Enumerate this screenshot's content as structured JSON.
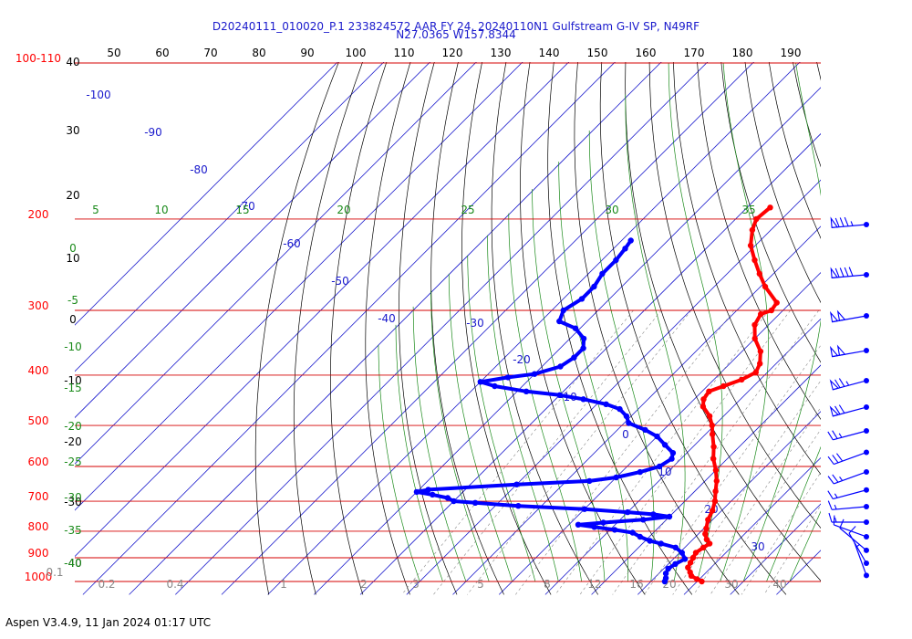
{
  "chart_data": {
    "type": "skew-t log-p sounding",
    "title_line1": "D20240111_010020_P.1 233824572 AAR FY 24, 20240110N1 Gulfstream G-IV SP, N49RF",
    "title_line2": "N27.0365 W157.8344",
    "footer": "Aspen V3.4.9, 11 Jan 2024  01:17 UTC",
    "pressure_labels": [
      {
        "text": "100-110",
        "p": 100
      },
      {
        "text": "200",
        "p": 200
      },
      {
        "text": "300",
        "p": 300
      },
      {
        "text": "400",
        "p": 400
      },
      {
        "text": "500",
        "p": 500
      },
      {
        "text": "600",
        "p": 600
      },
      {
        "text": "700",
        "p": 700
      },
      {
        "text": "800",
        "p": 800
      },
      {
        "text": "900",
        "p": 900
      },
      {
        "text": "1000",
        "p": 1000
      }
    ],
    "height_labels": [
      "40",
      "30",
      "20",
      "10",
      "0",
      "-10",
      "-20",
      "-30",
      "-40"
    ],
    "top_temp_labels": [
      "50",
      "60",
      "70",
      "80",
      "90",
      "100",
      "110",
      "120",
      "130",
      "140",
      "150",
      "160",
      "170",
      "180",
      "190"
    ],
    "isotherm_labels": [
      "-100",
      "-90",
      "-80",
      "-70",
      "-60",
      "-50",
      "-40",
      "-30",
      "-20",
      "-10",
      "0",
      "10",
      "20",
      "30"
    ],
    "dry_adiabat_top_labels": [
      "5",
      "10",
      "15",
      "20",
      "25",
      "30",
      "35"
    ],
    "dry_adiabat_left_labels": [
      "0",
      "-5",
      "-10",
      "-15",
      "-20",
      "-25",
      "-30",
      "-35",
      "-40"
    ],
    "mixing_ratio_labels": [
      "0.1",
      "0.2",
      "0.4",
      "1",
      "2",
      "3",
      "5",
      "8",
      "12",
      "16",
      "20",
      "30",
      "40"
    ],
    "temperature_profile": [
      {
        "p": 1000,
        "t": 21.0
      },
      {
        "p": 990,
        "t": 19.5
      },
      {
        "p": 975,
        "t": 17.5
      },
      {
        "p": 960,
        "t": 16.5
      },
      {
        "p": 940,
        "t": 15.0
      },
      {
        "p": 920,
        "t": 14.5
      },
      {
        "p": 900,
        "t": 14.0
      },
      {
        "p": 880,
        "t": 13.5
      },
      {
        "p": 860,
        "t": 14.0
      },
      {
        "p": 845,
        "t": 14.5
      },
      {
        "p": 830,
        "t": 13.0
      },
      {
        "p": 810,
        "t": 11.5
      },
      {
        "p": 790,
        "t": 10.5
      },
      {
        "p": 760,
        "t": 9.0
      },
      {
        "p": 730,
        "t": 8.0
      },
      {
        "p": 700,
        "t": 6.5
      },
      {
        "p": 670,
        "t": 4.5
      },
      {
        "p": 640,
        "t": 2.5
      },
      {
        "p": 610,
        "t": 0.0
      },
      {
        "p": 580,
        "t": -3.0
      },
      {
        "p": 550,
        "t": -5.5
      },
      {
        "p": 520,
        "t": -8.5
      },
      {
        "p": 500,
        "t": -10.5
      },
      {
        "p": 480,
        "t": -13.0
      },
      {
        "p": 460,
        "t": -16.5
      },
      {
        "p": 445,
        "t": -18.0
      },
      {
        "p": 430,
        "t": -18.5
      },
      {
        "p": 420,
        "t": -16.5
      },
      {
        "p": 408,
        "t": -14.0
      },
      {
        "p": 395,
        "t": -12.5
      },
      {
        "p": 380,
        "t": -13.5
      },
      {
        "p": 360,
        "t": -16.0
      },
      {
        "p": 340,
        "t": -20.0
      },
      {
        "p": 320,
        "t": -23.0
      },
      {
        "p": 305,
        "t": -24.0
      },
      {
        "p": 300,
        "t": -22.5
      },
      {
        "p": 290,
        "t": -23.0
      },
      {
        "p": 270,
        "t": -29.0
      },
      {
        "p": 255,
        "t": -33.0
      },
      {
        "p": 240,
        "t": -37.0
      },
      {
        "p": 225,
        "t": -41.0
      },
      {
        "p": 210,
        "t": -44.0
      },
      {
        "p": 200,
        "t": -45.5
      },
      {
        "p": 190,
        "t": -45.0
      }
    ],
    "dewpoint_profile": [
      {
        "p": 1000,
        "t": 13.0
      },
      {
        "p": 985,
        "t": 12.5
      },
      {
        "p": 965,
        "t": 11.5
      },
      {
        "p": 945,
        "t": 11.0
      },
      {
        "p": 925,
        "t": 11.5
      },
      {
        "p": 905,
        "t": 12.5
      },
      {
        "p": 880,
        "t": 10.5
      },
      {
        "p": 860,
        "t": 8.0
      },
      {
        "p": 845,
        "t": 4.0
      },
      {
        "p": 835,
        "t": 1.0
      },
      {
        "p": 820,
        "t": -2.0
      },
      {
        "p": 805,
        "t": -4.5
      },
      {
        "p": 795,
        "t": -9.0
      },
      {
        "p": 785,
        "t": -14.0
      },
      {
        "p": 777,
        "t": -18.0
      },
      {
        "p": 770,
        "t": -13.0
      },
      {
        "p": 760,
        "t": -5.0
      },
      {
        "p": 750,
        "t": 0.0
      },
      {
        "p": 742,
        "t": -4.0
      },
      {
        "p": 735,
        "t": -10.0
      },
      {
        "p": 725,
        "t": -20.0
      },
      {
        "p": 715,
        "t": -35.0
      },
      {
        "p": 705,
        "t": -45.0
      },
      {
        "p": 700,
        "t": -50.0
      },
      {
        "p": 690,
        "t": -52.0
      },
      {
        "p": 680,
        "t": -56.0
      },
      {
        "p": 672,
        "t": -60.0
      },
      {
        "p": 665,
        "t": -58.0
      },
      {
        "p": 650,
        "t": -40.0
      },
      {
        "p": 640,
        "t": -25.0
      },
      {
        "p": 630,
        "t": -20.0
      },
      {
        "p": 615,
        "t": -16.0
      },
      {
        "p": 600,
        "t": -13.0
      },
      {
        "p": 580,
        "t": -12.0
      },
      {
        "p": 565,
        "t": -13.0
      },
      {
        "p": 545,
        "t": -16.5
      },
      {
        "p": 525,
        "t": -20.0
      },
      {
        "p": 510,
        "t": -24.0
      },
      {
        "p": 495,
        "t": -29.0
      },
      {
        "p": 480,
        "t": -31.0
      },
      {
        "p": 465,
        "t": -34.0
      },
      {
        "p": 455,
        "t": -38.0
      },
      {
        "p": 445,
        "t": -44.0
      },
      {
        "p": 437,
        "t": -50.0
      },
      {
        "p": 430,
        "t": -58.0
      },
      {
        "p": 420,
        "t": -66.0
      },
      {
        "p": 412,
        "t": -70.0
      },
      {
        "p": 404,
        "t": -65.0
      },
      {
        "p": 398,
        "t": -60.0
      },
      {
        "p": 385,
        "t": -56.0
      },
      {
        "p": 370,
        "t": -55.0
      },
      {
        "p": 355,
        "t": -55.0
      },
      {
        "p": 340,
        "t": -57.0
      },
      {
        "p": 325,
        "t": -61.0
      },
      {
        "p": 315,
        "t": -66.0
      },
      {
        "p": 300,
        "t": -67.5
      },
      {
        "p": 285,
        "t": -66.0
      },
      {
        "p": 270,
        "t": -66.0
      },
      {
        "p": 255,
        "t": -67.0
      },
      {
        "p": 240,
        "t": -67.0
      },
      {
        "p": 228,
        "t": -67.5
      },
      {
        "p": 220,
        "t": -68.0
      }
    ],
    "wind_barbs": [
      {
        "p": 200,
        "direction_deg": 265,
        "speed_kt": 85
      },
      {
        "p": 250,
        "direction_deg": 265,
        "speed_kt": 90
      },
      {
        "p": 300,
        "direction_deg": 260,
        "speed_kt": 100
      },
      {
        "p": 350,
        "direction_deg": 260,
        "speed_kt": 100
      },
      {
        "p": 400,
        "direction_deg": 255,
        "speed_kt": 75
      },
      {
        "p": 450,
        "direction_deg": 255,
        "speed_kt": 70
      },
      {
        "p": 500,
        "direction_deg": 255,
        "speed_kt": 25
      },
      {
        "p": 550,
        "direction_deg": 250,
        "speed_kt": 30
      },
      {
        "p": 600,
        "direction_deg": 250,
        "speed_kt": 25
      },
      {
        "p": 650,
        "direction_deg": 255,
        "speed_kt": 15
      },
      {
        "p": 700,
        "direction_deg": 265,
        "speed_kt": 15
      },
      {
        "p": 750,
        "direction_deg": 270,
        "speed_kt": 15
      },
      {
        "p": 800,
        "direction_deg": 290,
        "speed_kt": 10
      },
      {
        "p": 850,
        "direction_deg": 310,
        "speed_kt": 10
      },
      {
        "p": 900,
        "direction_deg": 330,
        "speed_kt": 10
      },
      {
        "p": 950,
        "direction_deg": 340,
        "speed_kt": 5
      }
    ],
    "colors": {
      "temperature": "#ff0000",
      "dewpoint": "#0000ff",
      "isobar": "#d40000",
      "isotherm": "#1a1acc",
      "dry_adiabat": "#000000",
      "moist_adiabat": "#1a8a1a",
      "mixing_ratio": "#888888",
      "title": "#1a1acc"
    }
  }
}
